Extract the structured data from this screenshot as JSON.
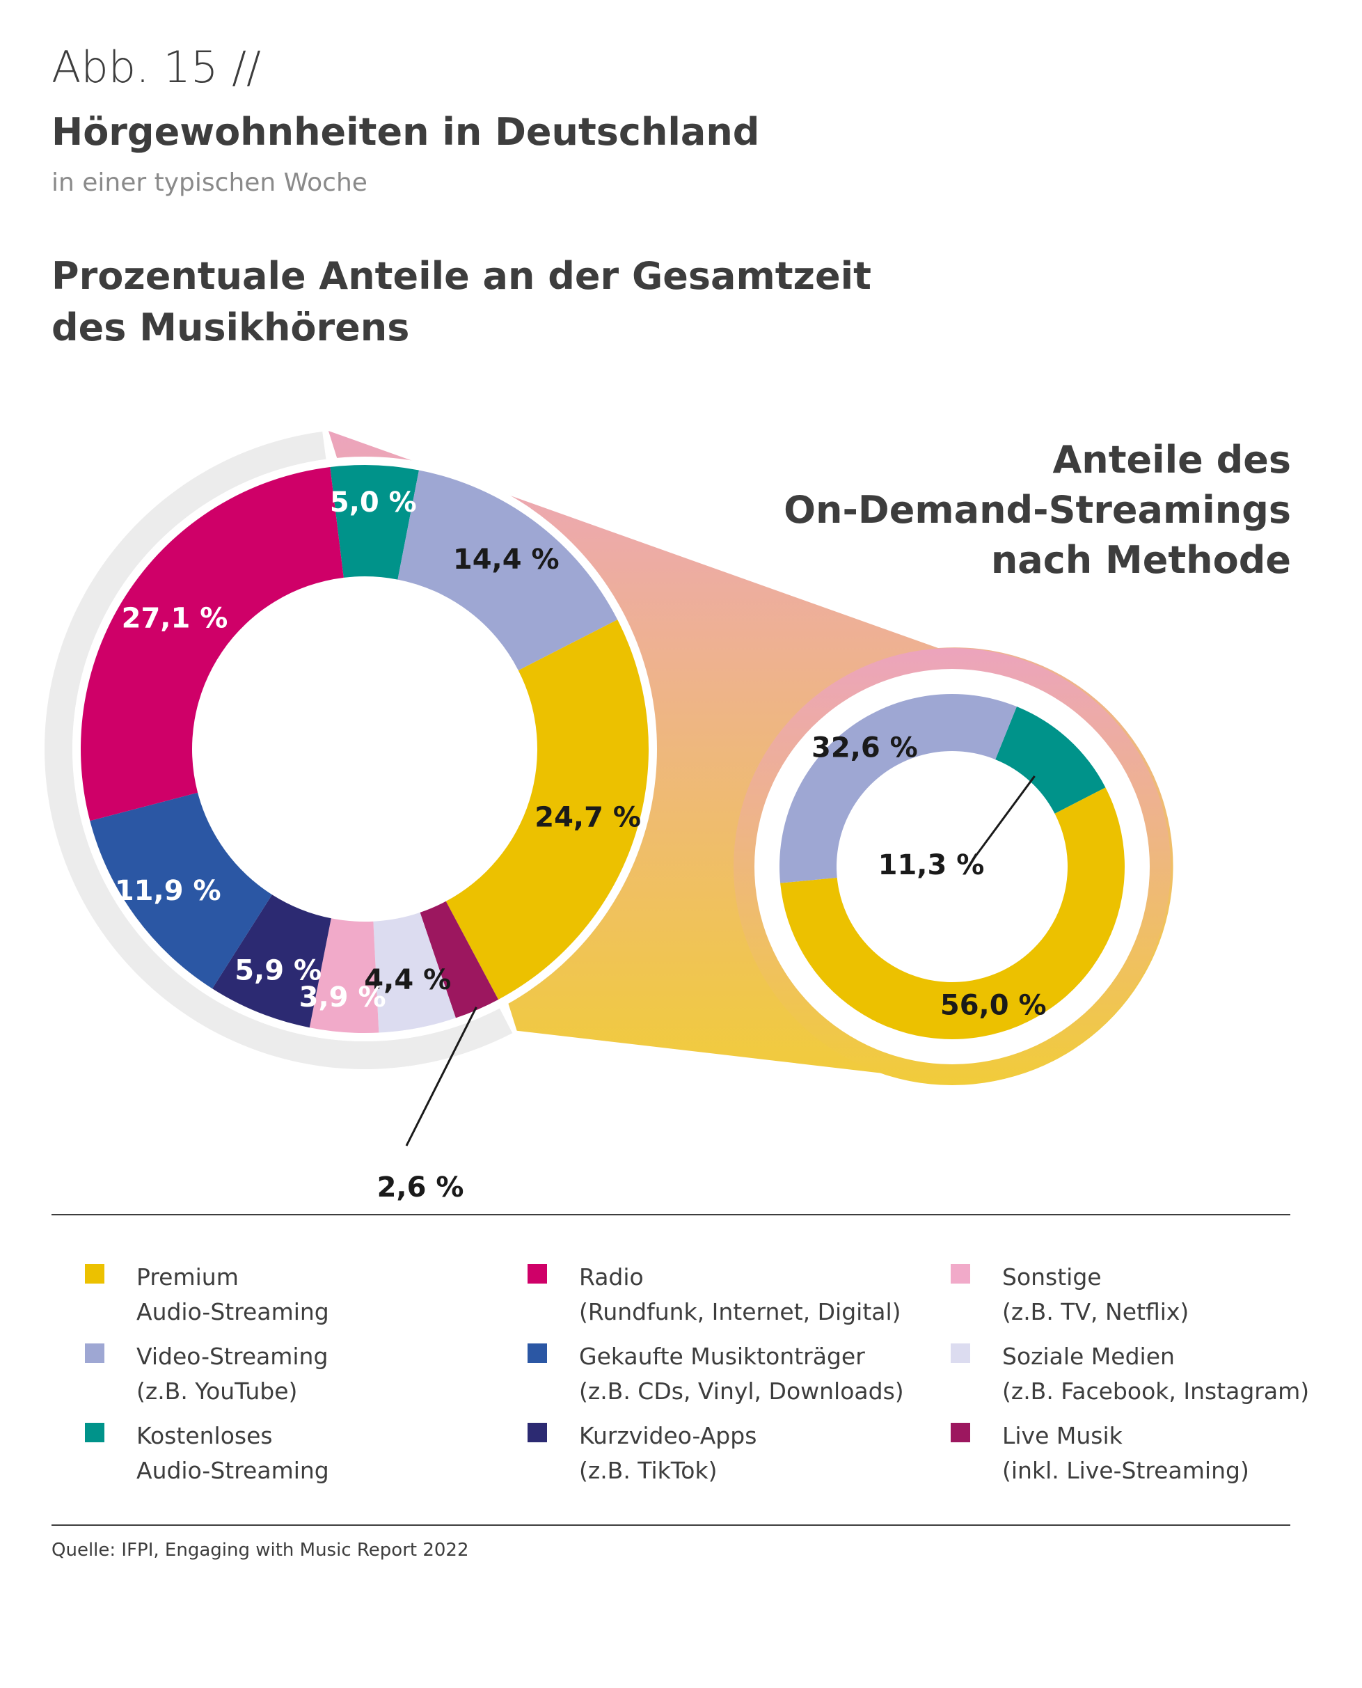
{
  "header": {
    "figure_number": "Abb. 15 //",
    "title": "Hörgewohnheiten in Deutschland",
    "subtitle": "in einer typischen Woche",
    "section_title_line1": "Prozentuale Anteile an der Gesamtzeit",
    "section_title_line2": "des Musikhörens",
    "right_title_line1": "Anteile des",
    "right_title_line2": "On-Demand-Streamings",
    "right_title_line3": "nach Methode"
  },
  "colors": {
    "premium": "#ecc100",
    "video": "#9ea7d3",
    "kostenlos": "#00938a",
    "radio": "#cf0068",
    "gekauft": "#2b57a4",
    "kurzvideo": "#2c2a72",
    "sonstige": "#f1aac9",
    "sozial": "#dcdcf0",
    "live": "#9c175f",
    "ring": "#ececec",
    "connector_top": "#eca4bd",
    "connector_bottom": "#f1cc3a"
  },
  "chart_data": [
    {
      "type": "pie",
      "variant": "donut",
      "title": "Prozentuale Anteile an der Gesamtzeit des Musikhörens",
      "slices": [
        {
          "key": "kostenlos",
          "label": "5,0 %",
          "value": 5.0,
          "color": "#00938a",
          "label_color": "#ffffff"
        },
        {
          "key": "video",
          "label": "14,4 %",
          "value": 14.4,
          "color": "#9ea7d3",
          "label_color": "#1a1a1a"
        },
        {
          "key": "premium",
          "label": "24,7 %",
          "value": 24.7,
          "color": "#ecc100",
          "label_color": "#1a1a1a"
        },
        {
          "key": "live",
          "label": "2,6 %",
          "value": 2.6,
          "color": "#9c175f",
          "label_color": "#1a1a1a"
        },
        {
          "key": "sozial",
          "label": "4,4 %",
          "value": 4.4,
          "color": "#dcdcf0",
          "label_color": "#1a1a1a"
        },
        {
          "key": "sonstige",
          "label": "3,9 %",
          "value": 3.9,
          "color": "#f1aac9",
          "label_color": "#ffffff"
        },
        {
          "key": "kurzvideo",
          "label": "5,9 %",
          "value": 5.9,
          "color": "#2c2a72",
          "label_color": "#ffffff"
        },
        {
          "key": "gekauft",
          "label": "11,9 %",
          "value": 11.9,
          "color": "#2b57a4",
          "label_color": "#ffffff"
        },
        {
          "key": "radio",
          "label": "27,1 %",
          "value": 27.1,
          "color": "#cf0068",
          "label_color": "#ffffff"
        }
      ]
    },
    {
      "type": "pie",
      "variant": "donut",
      "title": "Anteile des On-Demand-Streamings nach Methode",
      "slices": [
        {
          "key": "kostenlos",
          "label": "11,3 %",
          "value": 11.3,
          "color": "#00938a",
          "label_color": "#1a1a1a"
        },
        {
          "key": "premium",
          "label": "56,0 %",
          "value": 56.0,
          "color": "#ecc100",
          "label_color": "#1a1a1a"
        },
        {
          "key": "video",
          "label": "32,6 %",
          "value": 32.6,
          "color": "#9ea7d3",
          "label_color": "#1a1a1a"
        }
      ]
    }
  ],
  "legend": [
    {
      "key": "premium",
      "line1": "Premium",
      "line2": "Audio-Streaming",
      "color": "#ecc100"
    },
    {
      "key": "video",
      "line1": "Video-Streaming",
      "line2": "(z.B. YouTube)",
      "color": "#9ea7d3"
    },
    {
      "key": "kostenlos",
      "line1": "Kostenloses",
      "line2": "Audio-Streaming",
      "color": "#00938a"
    },
    {
      "key": "radio",
      "line1": "Radio",
      "line2": "(Rundfunk, Internet, Digital)",
      "color": "#cf0068"
    },
    {
      "key": "gekauft",
      "line1": "Gekaufte Musiktonträger",
      "line2": "(z.B. CDs, Vinyl, Downloads)",
      "color": "#2b57a4"
    },
    {
      "key": "kurzvideo",
      "line1": "Kurzvideo-Apps",
      "line2": "(z.B. TikTok)",
      "color": "#2c2a72"
    },
    {
      "key": "sonstige",
      "line1": "Sonstige",
      "line2": "(z.B. TV, Netflix)",
      "color": "#f1aac9"
    },
    {
      "key": "sozial",
      "line1": "Soziale Medien",
      "line2": "(z.B. Facebook, Instagram)",
      "color": "#dcdcf0"
    },
    {
      "key": "live",
      "line1": "Live Musik",
      "line2": "(inkl. Live-Streaming)",
      "color": "#9c175f"
    }
  ],
  "source": "Quelle: IFPI, Engaging with Music Report 2022"
}
